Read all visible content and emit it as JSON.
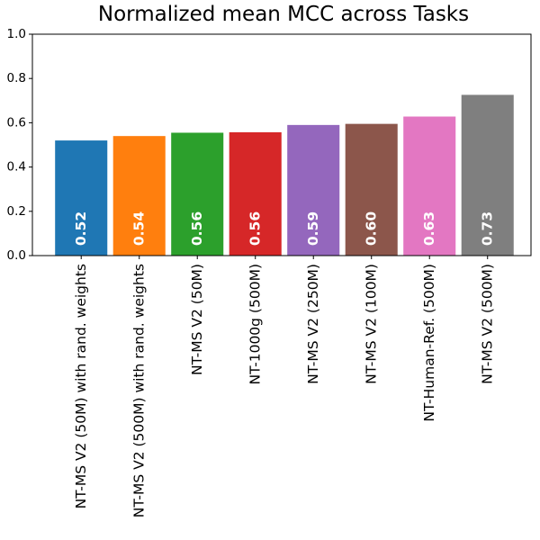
{
  "chart_data": {
    "type": "bar",
    "title": "Normalized mean MCC across Tasks",
    "xlabel": "",
    "ylabel": "",
    "ylim": [
      0,
      1.0
    ],
    "yticks": [
      "0.0",
      "0.2",
      "0.4",
      "0.6",
      "0.8",
      "1.0"
    ],
    "grid": false,
    "legend": "none",
    "categories": [
      "NT-MS V2 (50M) with rand. weights",
      "NT-MS V2 (500M) with rand. weights",
      "NT-MS V2 (50M)",
      "NT-1000g (500M)",
      "NT-MS V2 (250M)",
      "NT-MS V2 (100M)",
      "NT-Human-Ref. (500M)",
      "NT-MS V2 (500M)"
    ],
    "values": [
      0.52,
      0.54,
      0.555,
      0.557,
      0.59,
      0.595,
      0.628,
      0.726
    ],
    "value_labels": [
      "0.52",
      "0.54",
      "0.56",
      "0.56",
      "0.59",
      "0.60",
      "0.63",
      "0.73"
    ],
    "colors": [
      "#1f77b4",
      "#ff7f0e",
      "#2ca02c",
      "#d62728",
      "#9467bd",
      "#8c564b",
      "#e377c2",
      "#7f7f7f"
    ]
  }
}
